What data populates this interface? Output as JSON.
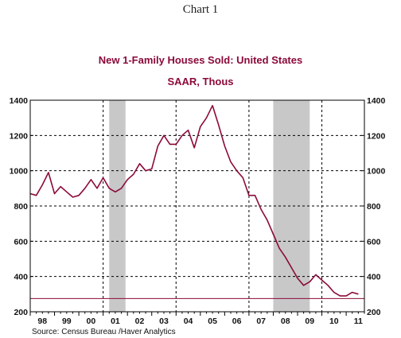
{
  "page": {
    "heading": "Chart 1"
  },
  "source": "Source:  Census Bureau /Haver Analytics",
  "colors": {
    "series": "#8b0a3a",
    "recession": "#c8c8c8",
    "title": "#8b0a3a"
  },
  "chart_data": {
    "type": "line",
    "title": "New 1-Family Houses Sold: United States",
    "subtitle": "SAAR, Thous",
    "ylim": [
      200,
      1400
    ],
    "y_ticks": [
      200,
      400,
      600,
      800,
      1000,
      1200,
      1400
    ],
    "y_axis_sides": "both",
    "xlim": [
      1998.0,
      2011.75
    ],
    "x_tick_labels": [
      {
        "label": "98",
        "x": 1998.5
      },
      {
        "label": "99",
        "x": 1999.5
      },
      {
        "label": "00",
        "x": 2000.5
      },
      {
        "label": "01",
        "x": 2001.5
      },
      {
        "label": "02",
        "x": 2002.5
      },
      {
        "label": "03",
        "x": 2003.5
      },
      {
        "label": "04",
        "x": 2004.5
      },
      {
        "label": "05",
        "x": 2005.5
      },
      {
        "label": "06",
        "x": 2006.5
      },
      {
        "label": "07",
        "x": 2007.5
      },
      {
        "label": "08",
        "x": 2008.5
      },
      {
        "label": "09",
        "x": 2009.5
      },
      {
        "label": "10",
        "x": 2010.5
      },
      {
        "label": "11",
        "x": 2011.5
      }
    ],
    "vertical_gridlines": [
      2001,
      2004,
      2007,
      2010
    ],
    "horizontal_gridlines": [
      400,
      600,
      800,
      1000,
      1200,
      1400
    ],
    "recessions": [
      [
        2001.25,
        2001.92
      ],
      [
        2008.0,
        2009.5
      ]
    ],
    "reference_line": 275,
    "series": [
      {
        "x": [
          1998.0,
          1998.25,
          1998.5,
          1998.75,
          1999.0,
          1999.25,
          1999.5,
          1999.75,
          2000.0,
          2000.25,
          2000.5,
          2000.75,
          2001.0,
          2001.25,
          2001.5,
          2001.75,
          2002.0,
          2002.25,
          2002.5,
          2002.75,
          2003.0,
          2003.25,
          2003.5,
          2003.75,
          2004.0,
          2004.25,
          2004.5,
          2004.75,
          2005.0,
          2005.25,
          2005.5,
          2005.75,
          2006.0,
          2006.25,
          2006.5,
          2006.75,
          2007.0,
          2007.25,
          2007.5,
          2007.75,
          2008.0,
          2008.25,
          2008.5,
          2008.75,
          2009.0,
          2009.25,
          2009.5,
          2009.75,
          2010.0,
          2010.25,
          2010.5,
          2010.75,
          2011.0,
          2011.25,
          2011.5
        ],
        "values": [
          870,
          860,
          920,
          990,
          870,
          910,
          880,
          850,
          860,
          900,
          950,
          900,
          960,
          900,
          880,
          900,
          950,
          980,
          1040,
          1000,
          1010,
          1140,
          1200,
          1150,
          1150,
          1200,
          1230,
          1130,
          1250,
          1300,
          1370,
          1260,
          1140,
          1050,
          1000,
          960,
          860,
          860,
          780,
          720,
          640,
          560,
          510,
          450,
          390,
          350,
          370,
          410,
          380,
          350,
          310,
          290,
          290,
          310,
          300
        ]
      }
    ]
  }
}
